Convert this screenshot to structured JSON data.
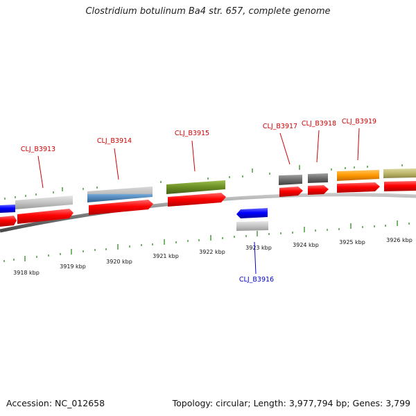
{
  "header": {
    "title": "Clostridium botulinum Ba4 str. 657, complete genome"
  },
  "footer": {
    "accession": "Accession: NC_012658",
    "summary": "Topology: circular; Length: 3,977,794 bp; Genes: 3,799"
  },
  "scale": {
    "ticks": [
      {
        "label": "3918 kbp"
      },
      {
        "label": "3919 kbp"
      },
      {
        "label": "3920 kbp"
      },
      {
        "label": "3921 kbp"
      },
      {
        "label": "3922 kbp"
      },
      {
        "label": "3923 kbp"
      },
      {
        "label": "3924 kbp"
      },
      {
        "label": "3925 kbp"
      },
      {
        "label": "3926 kbp"
      }
    ]
  },
  "genes": [
    {
      "label": "CLJ_B3913",
      "color": "#cc0000"
    },
    {
      "label": "CLJ_B3914",
      "color": "#cc0000"
    },
    {
      "label": "CLJ_B3915",
      "color": "#cc0000"
    },
    {
      "label": "CLJ_B3916",
      "color": "#0000cc"
    },
    {
      "label": "CLJ_B3917",
      "color": "#cc0000"
    },
    {
      "label": "CLJ_B3918",
      "color": "#cc0000"
    },
    {
      "label": "CLJ_B3919",
      "color": "#cc0000"
    }
  ],
  "colors": {
    "backbone": "#808080",
    "forward_cds": "#ff0000",
    "reverse_cds": "#0000ff",
    "tick": "#2e8b1e",
    "grey_feature": "#bdbdbd",
    "dark_feature": "#6b6b6b",
    "steelblue_feature": "#4682b4",
    "olive_feature": "#6b8e23",
    "orange_feature": "#ff9900",
    "khaki_feature": "#bdb76b"
  }
}
